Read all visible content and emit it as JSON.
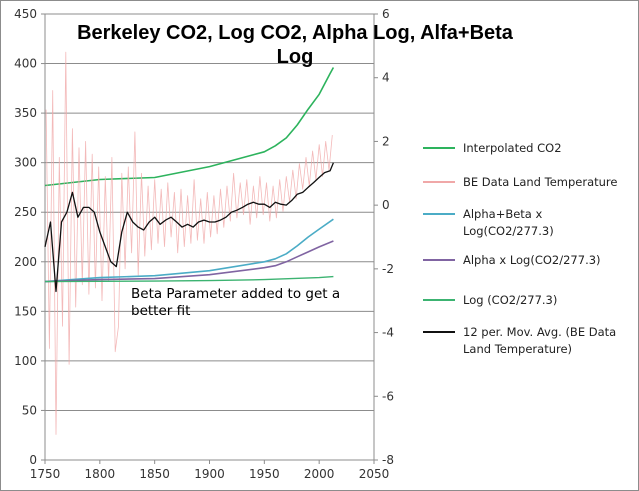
{
  "chart_data": {
    "type": "line",
    "title": "Berkeley CO2, Log CO2, Alpha Log, Alfa+Beta Log",
    "xlabel": "",
    "ylabel": "",
    "y2label": "",
    "xlim": [
      1750,
      2050
    ],
    "ylim": [
      0,
      450
    ],
    "y2lim": [
      -8,
      6
    ],
    "x_ticks": [
      1750,
      1800,
      1850,
      1900,
      1950,
      2000,
      2050
    ],
    "y_ticks": [
      0,
      50,
      100,
      150,
      200,
      250,
      300,
      350,
      400,
      450
    ],
    "y2_ticks": [
      -8,
      -6,
      -4,
      -2,
      0,
      2,
      4,
      6
    ],
    "grid": "horizontal",
    "legend": "right",
    "annotation": "Beta Parameter added to get a better fit",
    "series": [
      {
        "name": "Interpolated CO2",
        "axis": "left",
        "color": "#2db35d",
        "points": [
          [
            1750,
            277
          ],
          [
            1800,
            283
          ],
          [
            1850,
            285
          ],
          [
            1900,
            296
          ],
          [
            1950,
            311
          ],
          [
            1960,
            317
          ],
          [
            1970,
            325
          ],
          [
            1980,
            338
          ],
          [
            1990,
            354
          ],
          [
            2000,
            369
          ],
          [
            2010,
            390
          ],
          [
            2013,
            396
          ]
        ]
      },
      {
        "name": "BE Data Land Temperature",
        "axis": "right",
        "color": "#f0a8a8",
        "points": [
          [
            1751,
            3.0
          ],
          [
            1754,
            -4.5
          ],
          [
            1757,
            3.6
          ],
          [
            1760,
            -7.2
          ],
          [
            1763,
            1.5
          ],
          [
            1766,
            -3.8
          ],
          [
            1769,
            4.8
          ],
          [
            1772,
            -5.0
          ],
          [
            1775,
            2.4
          ],
          [
            1778,
            -3.2
          ],
          [
            1781,
            1.8
          ],
          [
            1784,
            -2.5
          ],
          [
            1787,
            2.0
          ],
          [
            1790,
            -2.8
          ],
          [
            1793,
            1.6
          ],
          [
            1796,
            -2.6
          ],
          [
            1799,
            1.2
          ],
          [
            1802,
            -3.0
          ],
          [
            1805,
            0.9
          ],
          [
            1808,
            -2.4
          ],
          [
            1811,
            1.5
          ],
          [
            1814,
            -4.6
          ],
          [
            1817,
            -3.8
          ],
          [
            1820,
            1.0
          ],
          [
            1823,
            -2.0
          ],
          [
            1826,
            1.2
          ],
          [
            1829,
            -1.5
          ],
          [
            1832,
            2.3
          ],
          [
            1835,
            -2.2
          ],
          [
            1838,
            1.0
          ],
          [
            1841,
            -1.6
          ],
          [
            1844,
            0.6
          ],
          [
            1847,
            -1.4
          ],
          [
            1850,
            0.8
          ],
          [
            1853,
            -1.2
          ],
          [
            1856,
            0.5
          ],
          [
            1859,
            -1.3
          ],
          [
            1862,
            0.7
          ],
          [
            1865,
            -1.0
          ],
          [
            1868,
            0.4
          ],
          [
            1871,
            -1.5
          ],
          [
            1874,
            0.5
          ],
          [
            1877,
            -1.3
          ],
          [
            1880,
            0.3
          ],
          [
            1883,
            -1.2
          ],
          [
            1886,
            0.8
          ],
          [
            1889,
            -1.1
          ],
          [
            1892,
            0.2
          ],
          [
            1895,
            -1.2
          ],
          [
            1898,
            0.4
          ],
          [
            1901,
            -1.0
          ],
          [
            1904,
            0.3
          ],
          [
            1907,
            -0.9
          ],
          [
            1910,
            0.5
          ],
          [
            1913,
            -0.7
          ],
          [
            1916,
            0.6
          ],
          [
            1919,
            -0.5
          ],
          [
            1922,
            1.0
          ],
          [
            1925,
            -0.4
          ],
          [
            1928,
            0.7
          ],
          [
            1931,
            -0.3
          ],
          [
            1934,
            0.8
          ],
          [
            1937,
            -0.6
          ],
          [
            1940,
            0.6
          ],
          [
            1943,
            -0.4
          ],
          [
            1946,
            0.9
          ],
          [
            1949,
            -0.3
          ],
          [
            1952,
            0.7
          ],
          [
            1955,
            -0.5
          ],
          [
            1958,
            0.6
          ],
          [
            1961,
            -0.4
          ],
          [
            1964,
            0.8
          ],
          [
            1967,
            -0.2
          ],
          [
            1970,
            0.9
          ],
          [
            1973,
            0.1
          ],
          [
            1976,
            1.1
          ],
          [
            1979,
            0.2
          ],
          [
            1982,
            1.3
          ],
          [
            1985,
            0.5
          ],
          [
            1988,
            1.5
          ],
          [
            1991,
            0.6
          ],
          [
            1994,
            1.7
          ],
          [
            1997,
            0.8
          ],
          [
            2000,
            1.9
          ],
          [
            2003,
            0.9
          ],
          [
            2006,
            2.0
          ],
          [
            2009,
            1.1
          ],
          [
            2012,
            2.2
          ]
        ]
      },
      {
        "name": "Alpha+Beta x Log(CO2/277.3)",
        "axis": "left",
        "color": "#4bacc6",
        "points": [
          [
            1750,
            180
          ],
          [
            1800,
            184
          ],
          [
            1850,
            186
          ],
          [
            1900,
            191
          ],
          [
            1950,
            200
          ],
          [
            1960,
            203
          ],
          [
            1970,
            208
          ],
          [
            1980,
            216
          ],
          [
            1990,
            225
          ],
          [
            2000,
            233
          ],
          [
            2013,
            243
          ]
        ]
      },
      {
        "name": "Alpha x Log(CO2/277.3)",
        "axis": "left",
        "color": "#8064a2",
        "points": [
          [
            1750,
            180
          ],
          [
            1800,
            182
          ],
          [
            1850,
            183
          ],
          [
            1900,
            187
          ],
          [
            1950,
            194
          ],
          [
            1960,
            196
          ],
          [
            1970,
            200
          ],
          [
            1980,
            205
          ],
          [
            1990,
            210
          ],
          [
            2000,
            215
          ],
          [
            2013,
            221
          ]
        ]
      },
      {
        "name": "Log (CO2/277.3)",
        "axis": "left",
        "color": "#3cb371",
        "points": [
          [
            1750,
            180
          ],
          [
            1850,
            180.5
          ],
          [
            1900,
            181
          ],
          [
            1950,
            182
          ],
          [
            2000,
            184
          ],
          [
            2013,
            185
          ]
        ]
      },
      {
        "name": "12 per. Mov. Avg. (BE Data Land Temperature)",
        "axis": "right",
        "color": "#111111",
        "points": [
          [
            1750,
            -1.31
          ],
          [
            1755,
            -0.53
          ],
          [
            1760,
            -2.71
          ],
          [
            1765,
            -0.53
          ],
          [
            1770,
            -0.22
          ],
          [
            1775,
            0.4
          ],
          [
            1780,
            -0.38
          ],
          [
            1785,
            -0.07
          ],
          [
            1790,
            -0.07
          ],
          [
            1795,
            -0.22
          ],
          [
            1800,
            -0.84
          ],
          [
            1805,
            -1.31
          ],
          [
            1810,
            -1.78
          ],
          [
            1815,
            -1.93
          ],
          [
            1820,
            -0.84
          ],
          [
            1825,
            -0.22
          ],
          [
            1830,
            -0.53
          ],
          [
            1835,
            -0.69
          ],
          [
            1840,
            -0.78
          ],
          [
            1845,
            -0.53
          ],
          [
            1850,
            -0.38
          ],
          [
            1855,
            -0.6
          ],
          [
            1860,
            -0.47
          ],
          [
            1865,
            -0.38
          ],
          [
            1870,
            -0.53
          ],
          [
            1875,
            -0.69
          ],
          [
            1880,
            -0.6
          ],
          [
            1885,
            -0.69
          ],
          [
            1890,
            -0.53
          ],
          [
            1895,
            -0.47
          ],
          [
            1900,
            -0.53
          ],
          [
            1905,
            -0.53
          ],
          [
            1910,
            -0.47
          ],
          [
            1915,
            -0.38
          ],
          [
            1920,
            -0.22
          ],
          [
            1925,
            -0.16
          ],
          [
            1930,
            -0.07
          ],
          [
            1935,
            0.03
          ],
          [
            1940,
            0.09
          ],
          [
            1945,
            0.03
          ],
          [
            1950,
            0.03
          ],
          [
            1955,
            -0.07
          ],
          [
            1960,
            0.09
          ],
          [
            1965,
            0.03
          ],
          [
            1970,
            0.0
          ],
          [
            1975,
            0.15
          ],
          [
            1980,
            0.34
          ],
          [
            1985,
            0.4
          ],
          [
            1990,
            0.56
          ],
          [
            1995,
            0.71
          ],
          [
            2000,
            0.87
          ],
          [
            2005,
            1.02
          ],
          [
            2010,
            1.08
          ],
          [
            2013,
            1.33
          ]
        ]
      }
    ]
  }
}
